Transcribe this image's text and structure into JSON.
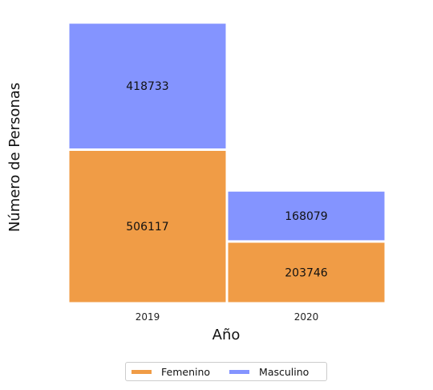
{
  "chart_data": {
    "type": "bar",
    "stacked": true,
    "categories": [
      "2019",
      "2020"
    ],
    "series": [
      {
        "name": "Femenino",
        "values": [
          506117,
          203746
        ],
        "color": "#F09C46"
      },
      {
        "name": "Masculino",
        "values": [
          418733,
          168079
        ],
        "color": "#8494FF"
      }
    ],
    "title": "",
    "xlabel": "Año",
    "ylabel": "Número de Personas",
    "ylim": [
      0,
      924850
    ],
    "grid": false,
    "legend_position": "bottom-center"
  }
}
